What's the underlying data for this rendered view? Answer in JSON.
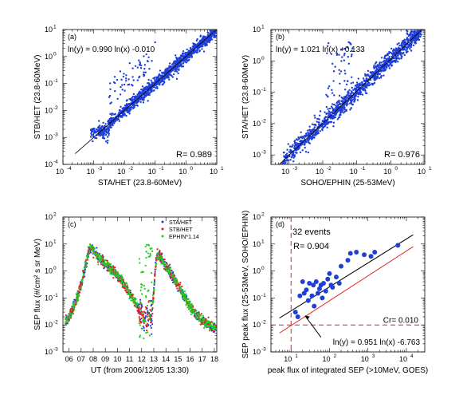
{
  "figure": {
    "panel_a": {
      "label": "(a)",
      "fit_equation": "ln(y) = 0.990 ln(x) -0.010",
      "r_label": "R= 0.989",
      "xlabel": "STA/HET (23.8-60MeV)",
      "ylabel": "STB/HET (23.8-60MeV)"
    },
    "panel_b": {
      "label": "(b)",
      "fit_equation": "ln(y) = 1.021 ln(x) +0.133",
      "r_label": "R= 0.976",
      "xlabel": "SOHO/EPHIN (25-53MeV)",
      "ylabel": "STA/HET (23.8-60MeV)"
    },
    "panel_c": {
      "label": "(c)",
      "xlabel": "UT (from 2006/12/05 13:30)",
      "ylabel": "SEP flux (#/cm² s sr MeV)",
      "legend": [
        "STA/HET",
        "STB/HET",
        "EPHIN*1.14"
      ]
    },
    "panel_d": {
      "label": "(d)",
      "events_text": "32 events",
      "r_label": "R= 0.904",
      "cr_text": "Cr= 0.010",
      "fit_equation": "ln(y) = 0.951 ln(x) -6.763",
      "xlabel": "peak flux of integrated SEP (>10MeV, GOES)",
      "ylabel": "SEP peak flux (25-53MeV, SOHO/EPHIN)"
    }
  },
  "colors": {
    "blue": "#1f3fd8",
    "red": "#e02020",
    "green": "#22cc22",
    "black": "#000000"
  },
  "chart_data": [
    {
      "type": "scatter",
      "panel": "a",
      "xlabel": "STA/HET (23.8-60MeV)",
      "ylabel": "STB/HET (23.8-60MeV)",
      "xscale": "log",
      "yscale": "log",
      "xlim": [
        0.0001,
        10
      ],
      "ylim": [
        0.0001,
        10
      ],
      "xticks": [
        "10^-4",
        "10^-3",
        "10^-2",
        "10^-1",
        "10^0",
        "10^1"
      ],
      "yticks": [
        "10^-4",
        "10^-3",
        "10^-2",
        "10^-1",
        "10^0",
        "10^1"
      ],
      "fit": {
        "slope": 0.99,
        "intercept": -0.01
      },
      "R": 0.989,
      "series": [
        {
          "color": "#1f3fd8",
          "description_points": [
            [
              0.0005,
              0.0006
            ],
            [
              0.001,
              0.001
            ],
            [
              0.002,
              0.0015
            ],
            [
              0.003,
              0.003
            ],
            [
              0.005,
              0.005
            ],
            [
              0.01,
              0.01
            ],
            [
              0.02,
              0.02
            ],
            [
              0.05,
              0.05
            ],
            [
              0.1,
              0.1
            ],
            [
              0.2,
              0.2
            ],
            [
              0.5,
              0.5
            ],
            [
              1,
              1
            ],
            [
              2,
              2
            ],
            [
              5,
              5
            ],
            [
              10,
              10
            ],
            [
              0.03,
              0.1
            ],
            [
              0.05,
              0.5
            ],
            [
              0.08,
              1
            ],
            [
              0.1,
              0.001
            ],
            [
              0.2,
              0.002
            ]
          ]
        }
      ]
    },
    {
      "type": "scatter",
      "panel": "b",
      "xlabel": "SOHO/EPHIN (25-53MeV)",
      "ylabel": "STA/HET (23.8-60MeV)",
      "xscale": "log",
      "yscale": "log",
      "xlim": [
        0.0003,
        10
      ],
      "ylim": [
        0.0005,
        10
      ],
      "xticks": [
        "10^-3",
        "10^-2",
        "10^-1",
        "10^0",
        "10^1"
      ],
      "yticks": [
        "10^-3",
        "10^-2",
        "10^-1",
        "10^0",
        "10^1"
      ],
      "fit": {
        "slope": 1.021,
        "intercept": 0.133
      },
      "R": 0.976,
      "series": [
        {
          "color": "#1f3fd8",
          "description_points": [
            [
              0.0005,
              0.0007
            ],
            [
              0.001,
              0.0012
            ],
            [
              0.003,
              0.004
            ],
            [
              0.01,
              0.012
            ],
            [
              0.03,
              0.04
            ],
            [
              0.1,
              0.12
            ],
            [
              0.3,
              0.4
            ],
            [
              1,
              1.2
            ],
            [
              3,
              4
            ],
            [
              8,
              9
            ],
            [
              0.02,
              0.6
            ],
            [
              0.03,
              2
            ],
            [
              0.04,
              0.3
            ]
          ]
        }
      ]
    },
    {
      "type": "line",
      "panel": "c",
      "xlabel": "UT (from 2006/12/05 13:30)",
      "ylabel": "SEP flux (#/cm² s sr MeV)",
      "yscale": "log",
      "xlim": [
        5.5,
        18.2
      ],
      "ylim": [
        0.001,
        100
      ],
      "xticks": [
        "06",
        "07",
        "08",
        "09",
        "10",
        "11",
        "12",
        "13",
        "14",
        "15",
        "16",
        "17",
        "18"
      ],
      "yticks": [
        "10^-3",
        "10^-2",
        "10^-1",
        "10^0",
        "10^1",
        "10^2"
      ],
      "series": [
        {
          "name": "STA/HET",
          "color": "#1f3fd8"
        },
        {
          "name": "STB/HET",
          "color": "#e02020"
        },
        {
          "name": "EPHIN*1.14",
          "color": "#22cc22"
        }
      ],
      "profile_x": [
        5.7,
        6.0,
        6.5,
        7.0,
        7.3,
        7.6,
        7.8,
        8.0,
        8.5,
        9.0,
        9.5,
        10.0,
        10.5,
        11.0,
        11.5,
        11.8,
        12.0,
        12.2,
        12.4,
        12.6,
        12.8,
        13.0,
        13.1,
        13.3,
        13.6,
        14.0,
        14.5,
        15.0,
        15.5,
        16.0,
        16.5,
        17.0,
        17.5,
        18.0
      ],
      "profile_y": [
        0.012,
        0.02,
        0.06,
        0.3,
        1.2,
        5,
        8,
        6,
        3,
        1.8,
        1.2,
        0.7,
        0.35,
        0.15,
        0.06,
        0.035,
        0.025,
        0.02,
        0.02,
        0.02,
        0.02,
        0.15,
        1,
        4,
        3,
        1.5,
        0.7,
        0.3,
        0.12,
        0.05,
        0.025,
        0.015,
        0.01,
        0.008
      ]
    },
    {
      "type": "scatter",
      "panel": "d",
      "xlabel": "peak flux of integrated SEP (>10MeV, GOES)",
      "ylabel": "SEP peak flux (25-53MeV, SOHO/EPHIN)",
      "xscale": "log",
      "yscale": "log",
      "xlim": [
        3,
        30000
      ],
      "ylim": [
        0.001,
        100
      ],
      "xticks": [
        "10^1",
        "10^2",
        "10^3",
        "10^4"
      ],
      "yticks": [
        "10^-3",
        "10^-2",
        "10^-1",
        "10^0",
        "10^1",
        "10^2"
      ],
      "events": 32,
      "R": 0.904,
      "Cr": 0.01,
      "fit": {
        "slope": 0.951,
        "intercept": -6.763
      },
      "threshold_x": 10,
      "threshold_y": 0.01,
      "points": [
        [
          13,
          0.03
        ],
        [
          15,
          0.02
        ],
        [
          17,
          0.12
        ],
        [
          20,
          0.4
        ],
        [
          22,
          0.15
        ],
        [
          25,
          0.2
        ],
        [
          28,
          0.08
        ],
        [
          30,
          0.35
        ],
        [
          35,
          0.12
        ],
        [
          38,
          0.3
        ],
        [
          40,
          0.05
        ],
        [
          45,
          0.4
        ],
        [
          50,
          0.15
        ],
        [
          55,
          0.22
        ],
        [
          60,
          0.3
        ],
        [
          65,
          0.1
        ],
        [
          70,
          0.35
        ],
        [
          80,
          0.18
        ],
        [
          90,
          0.5
        ],
        [
          100,
          0.8
        ],
        [
          110,
          0.3
        ],
        [
          120,
          0.25
        ],
        [
          150,
          0.6
        ],
        [
          180,
          0.35
        ],
        [
          200,
          1.5
        ],
        [
          300,
          2.5
        ],
        [
          350,
          4.5
        ],
        [
          500,
          5
        ],
        [
          800,
          4
        ],
        [
          1200,
          3.5
        ],
        [
          1500,
          5
        ],
        [
          6000,
          9
        ]
      ]
    }
  ]
}
